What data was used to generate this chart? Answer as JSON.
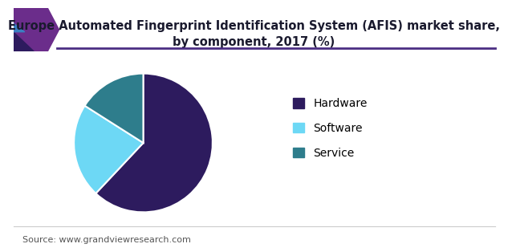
{
  "title": "Europe Automated Fingerprint Identification System (AFIS) market share,\nby component, 2017 (%)",
  "labels": [
    "Hardware",
    "Software",
    "Service"
  ],
  "values": [
    62,
    22,
    16
  ],
  "colors": [
    "#2d1b5e",
    "#6dd8f5",
    "#2e7d8c"
  ],
  "startangle": 90,
  "legend_labels": [
    "Hardware",
    "Software",
    "Service"
  ],
  "source_text": "Source: www.grandviewresearch.com",
  "title_fontsize": 10.5,
  "legend_fontsize": 10,
  "source_fontsize": 8,
  "background_color": "#ffffff",
  "wedge_edge_color": "#ffffff",
  "header_line_color": "#4b2e83",
  "bottom_line_color": "#cccccc",
  "corner_color1": "#6b2d8b",
  "corner_color2": "#2d1b5e",
  "corner_color3": "#3a7fc1"
}
